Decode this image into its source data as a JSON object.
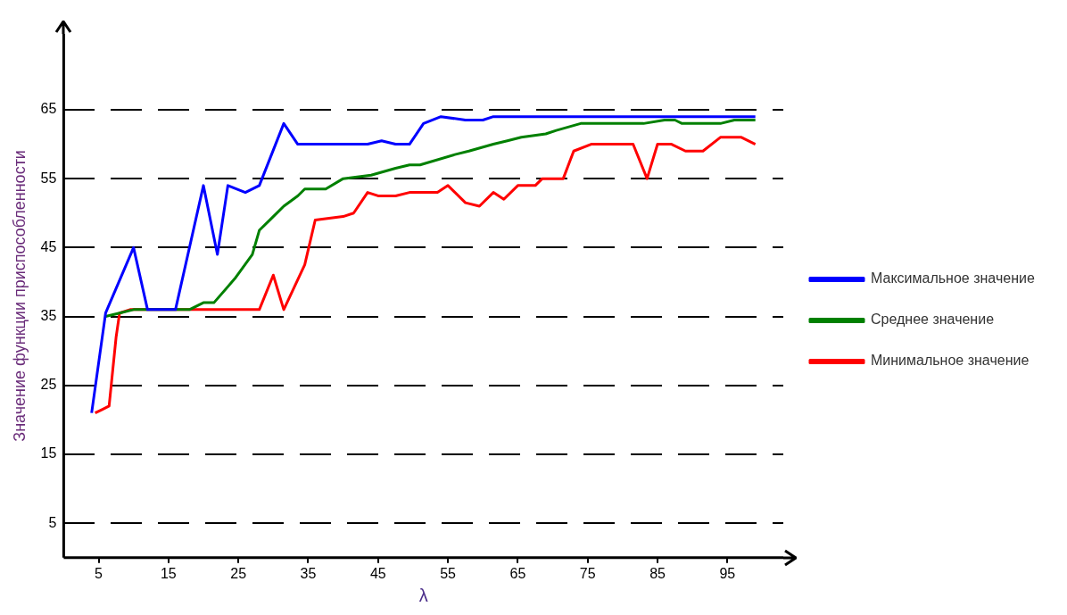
{
  "chart_data": {
    "type": "line",
    "xlabel": "λ",
    "ylabel": "Значение функции приспособленности",
    "xlim": [
      0,
      103
    ],
    "ylim": [
      0,
      76
    ],
    "xticks": [
      5,
      15,
      25,
      35,
      45,
      55,
      65,
      75,
      85,
      95
    ],
    "yticks": [
      5,
      15,
      25,
      35,
      45,
      55,
      65
    ],
    "grid": "y",
    "legend": "right",
    "marker": "none",
    "line_style": "solid",
    "series": [
      {
        "name": "Максимальное значение",
        "color": "#0000ff",
        "x": [
          4,
          6,
          10,
          12,
          16,
          20,
          22,
          23.5,
          26,
          28,
          31.5,
          33.5,
          43.5,
          45.5,
          47.5,
          49.5,
          51.5,
          54,
          57.5,
          60,
          61.5,
          99
        ],
        "values": [
          21,
          35.5,
          45,
          36,
          36,
          54,
          44,
          54,
          53,
          54,
          63,
          60,
          60,
          60.5,
          60,
          60,
          63,
          64,
          63.5,
          63.5,
          64,
          64
        ]
      },
      {
        "name": "Среднее значение",
        "color": "#008000",
        "x": [
          6,
          8,
          10,
          12,
          18,
          20,
          21.5,
          24.5,
          27,
          28,
          30,
          31.5,
          33.5,
          34.5,
          37.5,
          40,
          44,
          47.5,
          49.5,
          51,
          56,
          58,
          61.5,
          63.5,
          65.5,
          69,
          70.5,
          74,
          75.5,
          77.5,
          81.5,
          83,
          86,
          87.5,
          88.5,
          94,
          96,
          99
        ],
        "values": [
          35,
          35.5,
          36,
          36,
          36,
          37,
          37,
          40.5,
          44,
          47.5,
          49.5,
          51,
          52.5,
          53.5,
          53.5,
          55,
          55.5,
          56.5,
          57,
          57,
          58.5,
          59,
          60,
          60.5,
          61,
          61.5,
          62,
          63,
          63,
          63,
          63,
          63,
          63.5,
          63.5,
          63,
          63,
          63.5,
          63.5
        ]
      },
      {
        "name": "Минимальное значение",
        "color": "#ff0000",
        "x": [
          4.5,
          5.5,
          6.5,
          7.5,
          8,
          9.5,
          28,
          30,
          31.5,
          34.5,
          36,
          40,
          41.5,
          43.5,
          45,
          47.5,
          49.5,
          53.5,
          55,
          57.5,
          59.5,
          61.5,
          63,
          65,
          67.5,
          68.5,
          71.5,
          73,
          75.5,
          81.5,
          83.5,
          85,
          87,
          89,
          91.5,
          94,
          97,
          99
        ],
        "values": [
          21,
          21.5,
          22,
          32,
          35.5,
          36,
          36,
          41,
          36,
          42.5,
          49,
          49.5,
          50,
          53,
          52.5,
          52.5,
          53,
          53,
          54,
          51.5,
          51,
          53,
          52,
          54,
          54,
          55,
          55,
          59,
          60,
          60,
          55,
          60,
          60,
          59,
          59,
          61,
          61,
          60
        ]
      }
    ]
  }
}
